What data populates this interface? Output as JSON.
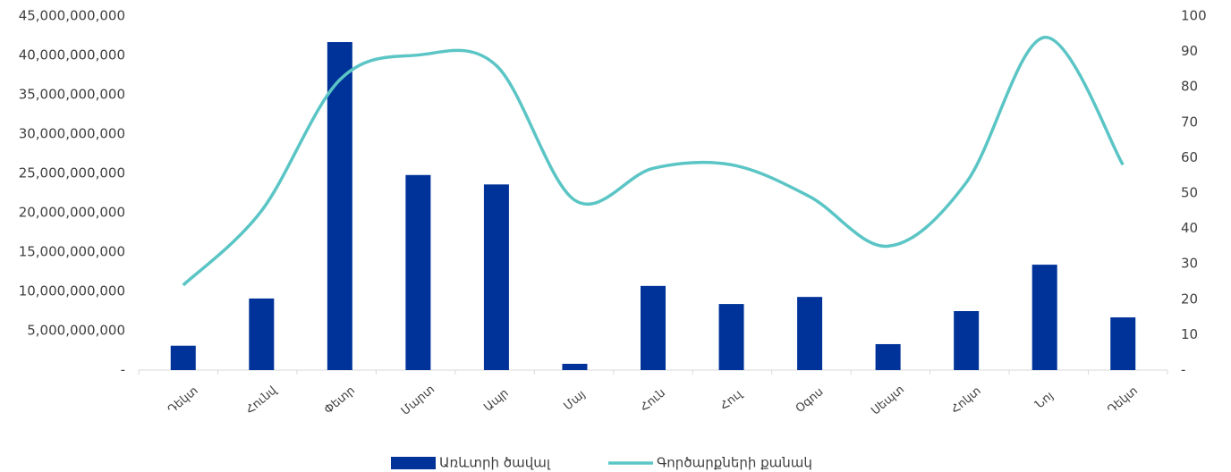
{
  "chart_data": {
    "type": "bar_line",
    "categories": [
      "Դեկտ",
      "Հունվ",
      "Փետր",
      "Մարտ",
      "Ապր",
      "Մայ",
      "Հուն",
      "Հուլ",
      "Օգոս",
      "Սեպտ",
      "Հոկտ",
      "Նոյ",
      "Դեկտ"
    ],
    "series": [
      {
        "name": "Առևտրի ծավալ",
        "type": "bar",
        "color": "#00339a",
        "values": [
          3100000000,
          9100000000,
          41700000000,
          24800000000,
          23600000000,
          800000000,
          10700000000,
          8400000000,
          9300000000,
          3300000000,
          7500000000,
          13400000000,
          6700000000
        ]
      },
      {
        "name": "Գործարքների քանակ",
        "type": "line",
        "axis": "y2",
        "color": "#5bc5c5",
        "values": [
          24,
          45,
          82,
          89,
          86,
          48,
          57,
          58,
          49,
          35,
          53,
          94,
          58
        ]
      }
    ],
    "ylim": [
      0,
      45000000000
    ],
    "yticks": [
      {
        "value": 0,
        "label": "-"
      },
      {
        "value": 5000000000,
        "label": "5,000,000,000"
      },
      {
        "value": 10000000000,
        "label": "10,000,000,000"
      },
      {
        "value": 15000000000,
        "label": "15,000,000,000"
      },
      {
        "value": 20000000000,
        "label": "20,000,000,000"
      },
      {
        "value": 25000000000,
        "label": "25,000,000,000"
      },
      {
        "value": 30000000000,
        "label": "30,000,000,000"
      },
      {
        "value": 35000000000,
        "label": "35,000,000,000"
      },
      {
        "value": 40000000000,
        "label": "40,000,000,000"
      },
      {
        "value": 45000000000,
        "label": "45,000,000,000"
      }
    ],
    "y2lim": [
      0,
      100
    ],
    "y2ticks": [
      {
        "value": 0,
        "label": "-"
      },
      10,
      20,
      30,
      40,
      50,
      60,
      70,
      80,
      90,
      100
    ],
    "legend": "bottom"
  }
}
